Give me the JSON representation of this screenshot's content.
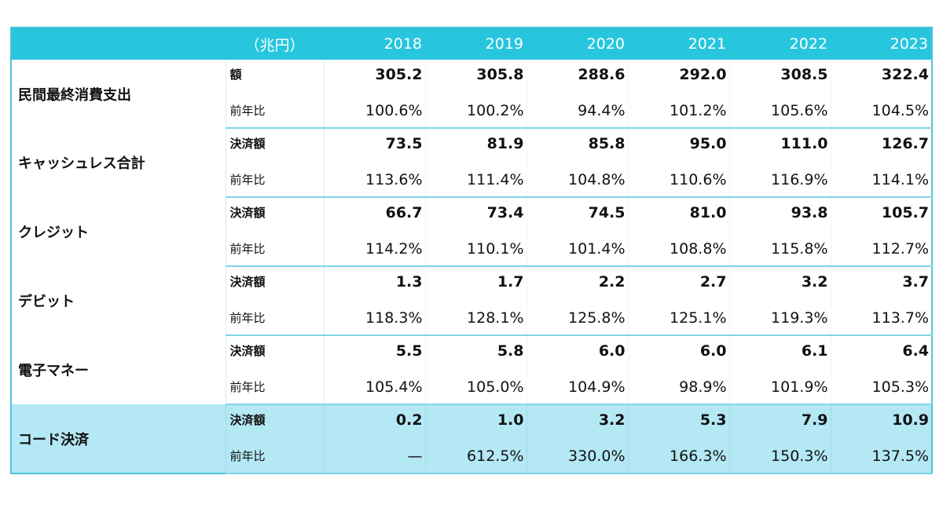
{
  "chart_data": {
    "type": "table",
    "unit_label": "（兆円）",
    "years": [
      "2018",
      "2019",
      "2020",
      "2021",
      "2022",
      "2023"
    ],
    "rows": [
      {
        "category": "民間最終消費支出",
        "amount_label": "額",
        "amounts": [
          "305.2",
          "305.8",
          "288.6",
          "292.0",
          "308.5",
          "322.4"
        ],
        "ratio_label": "前年比",
        "ratios": [
          "100.6%",
          "100.2%",
          "94.4%",
          "101.2%",
          "105.6%",
          "104.5%"
        ]
      },
      {
        "category": "キャッシュレス合計",
        "amount_label": "決済額",
        "amounts": [
          "73.5",
          "81.9",
          "85.8",
          "95.0",
          "111.0",
          "126.7"
        ],
        "ratio_label": "前年比",
        "ratios": [
          "113.6%",
          "111.4%",
          "104.8%",
          "110.6%",
          "116.9%",
          "114.1%"
        ]
      },
      {
        "category": "クレジット",
        "amount_label": "決済額",
        "amounts": [
          "66.7",
          "73.4",
          "74.5",
          "81.0",
          "93.8",
          "105.7"
        ],
        "ratio_label": "前年比",
        "ratios": [
          "114.2%",
          "110.1%",
          "101.4%",
          "108.8%",
          "115.8%",
          "112.7%"
        ]
      },
      {
        "category": "デビット",
        "amount_label": "決済額",
        "amounts": [
          "1.3",
          "1.7",
          "2.2",
          "2.7",
          "3.2",
          "3.7"
        ],
        "ratio_label": "前年比",
        "ratios": [
          "118.3%",
          "128.1%",
          "125.8%",
          "125.1%",
          "119.3%",
          "113.7%"
        ]
      },
      {
        "category": "電子マネー",
        "amount_label": "決済額",
        "amounts": [
          "5.5",
          "5.8",
          "6.0",
          "6.0",
          "6.1",
          "6.4"
        ],
        "ratio_label": "前年比",
        "ratios": [
          "105.4%",
          "105.0%",
          "104.9%",
          "98.9%",
          "101.9%",
          "105.3%"
        ]
      },
      {
        "category": "コード決済",
        "amount_label": "決済額",
        "amounts": [
          "0.2",
          "1.0",
          "3.2",
          "5.3",
          "7.9",
          "10.9"
        ],
        "ratio_label": "前年比",
        "ratios": [
          "—",
          "612.5%",
          "330.0%",
          "166.3%",
          "150.3%",
          "137.5%"
        ],
        "highlighted": true
      }
    ]
  },
  "colors": {
    "header_bg": "#27c6de",
    "header_text": "#ffffff",
    "highlight_row_bg": "#b3e8f4",
    "border": "#4fc4dc"
  }
}
